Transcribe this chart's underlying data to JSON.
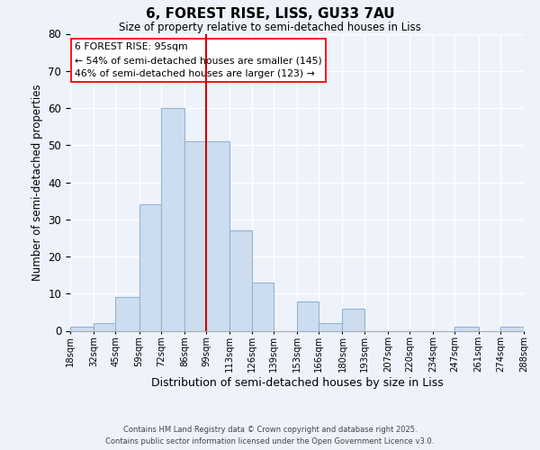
{
  "title": "6, FOREST RISE, LISS, GU33 7AU",
  "subtitle": "Size of property relative to semi-detached houses in Liss",
  "xlabel": "Distribution of semi-detached houses by size in Liss",
  "ylabel": "Number of semi-detached properties",
  "bar_color": "#cdddf0",
  "bar_edge_color": "#92b4d4",
  "background_color": "#eef2fb",
  "grid_color": "#ffffff",
  "bin_edges": [
    18,
    32,
    45,
    59,
    72,
    86,
    99,
    113,
    126,
    139,
    153,
    166,
    180,
    193,
    207,
    220,
    234,
    247,
    261,
    274,
    288
  ],
  "bin_labels": [
    "18sqm",
    "32sqm",
    "45sqm",
    "59sqm",
    "72sqm",
    "86sqm",
    "99sqm",
    "113sqm",
    "126sqm",
    "139sqm",
    "153sqm",
    "166sqm",
    "180sqm",
    "193sqm",
    "207sqm",
    "220sqm",
    "234sqm",
    "247sqm",
    "261sqm",
    "274sqm",
    "288sqm"
  ],
  "counts": [
    1,
    2,
    9,
    34,
    60,
    51,
    51,
    27,
    13,
    0,
    8,
    2,
    6,
    0,
    0,
    0,
    0,
    1,
    0,
    1
  ],
  "vline_x": 99,
  "vline_color": "#cc0000",
  "ylim": [
    0,
    80
  ],
  "yticks": [
    0,
    10,
    20,
    30,
    40,
    50,
    60,
    70,
    80
  ],
  "annotation_title": "6 FOREST RISE: 95sqm",
  "annotation_line1": "← 54% of semi-detached houses are smaller (145)",
  "annotation_line2": "46% of semi-detached houses are larger (123) →",
  "footer1": "Contains HM Land Registry data © Crown copyright and database right 2025.",
  "footer2": "Contains public sector information licensed under the Open Government Licence v3.0."
}
